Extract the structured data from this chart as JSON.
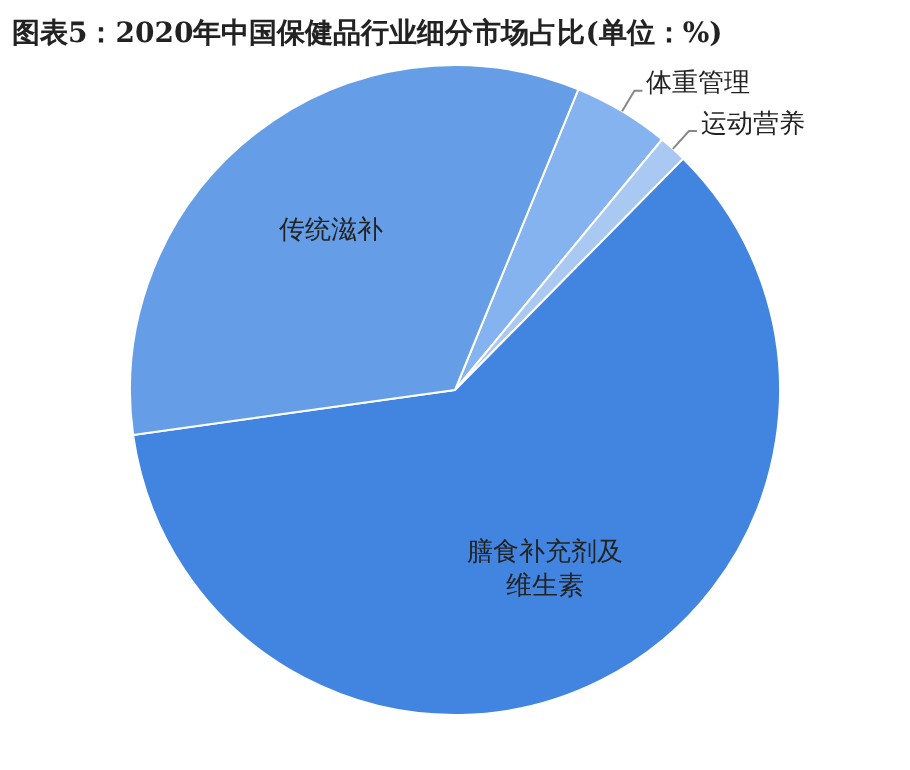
{
  "chart_data": {
    "type": "pie",
    "title": "图表5：2020年中国保健品行业细分市场占比(单位：%)",
    "categories": [
      "体重管理",
      "运动营养",
      "膳食补充剂及维生素",
      "传统滋补"
    ],
    "values": [
      4.8,
      1.4,
      60.4,
      33.4
    ],
    "colors": [
      "#84b3ef",
      "#a9c9f2",
      "#4285e0",
      "#659ee6"
    ],
    "legend": false
  }
}
